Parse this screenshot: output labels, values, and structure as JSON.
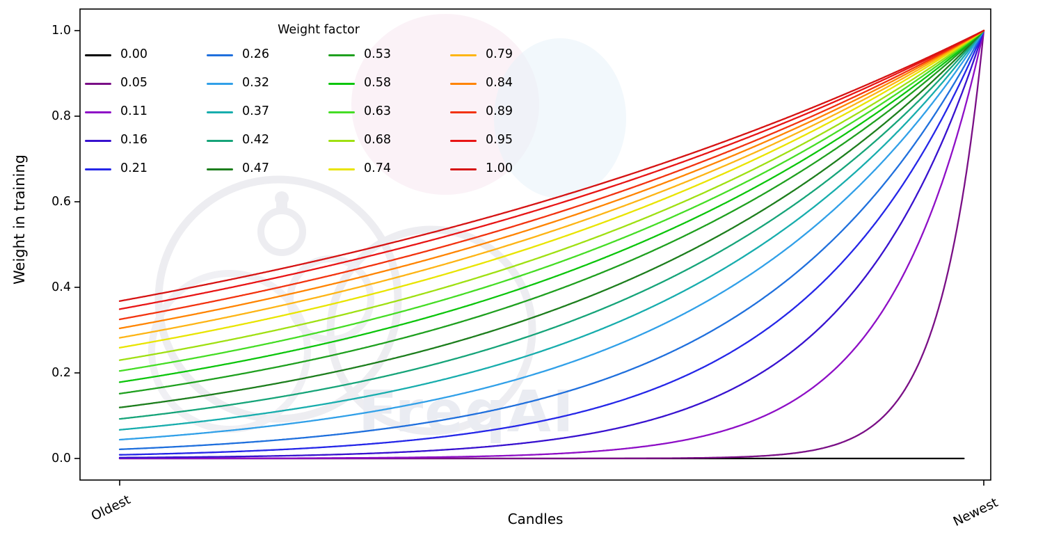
{
  "chart_data": {
    "type": "line",
    "title": "",
    "xlabel": "Candles",
    "ylabel": "Weight in training",
    "x_axis": {
      "tick_labels": [
        "Oldest",
        "Newest"
      ]
    },
    "ylim": [
      0,
      1
    ],
    "yticks": [
      0.0,
      0.2,
      0.4,
      0.6,
      0.8,
      1.0
    ],
    "ytick_labels": [
      "0.0",
      "0.2",
      "0.4",
      "0.6",
      "0.8",
      "1.0"
    ],
    "legend": {
      "title": "Weight factor",
      "position": "upper-left",
      "columns": 4,
      "frame": false
    },
    "grid": false,
    "curve_formula": "weight(x) = exp(-(1 - x) / weight_factor), with x in [0,1] running from oldest to newest candle; weight_factor = 0 keeps the weight at 0 for all but the newest candle (weight 1 at the newest)",
    "watermark": "FreqAI",
    "series": [
      {
        "label": "0.00",
        "weight_factor": 0.0,
        "color": "#000000"
      },
      {
        "label": "0.05",
        "weight_factor": 0.05,
        "color": "#7a0f86"
      },
      {
        "label": "0.11",
        "weight_factor": 0.11,
        "color": "#8e0fc6"
      },
      {
        "label": "0.16",
        "weight_factor": 0.16,
        "color": "#3812cf"
      },
      {
        "label": "0.21",
        "weight_factor": 0.21,
        "color": "#2527e8"
      },
      {
        "label": "0.26",
        "weight_factor": 0.26,
        "color": "#2070dd"
      },
      {
        "label": "0.32",
        "weight_factor": 0.32,
        "color": "#31a0e8"
      },
      {
        "label": "0.37",
        "weight_factor": 0.37,
        "color": "#18adad"
      },
      {
        "label": "0.42",
        "weight_factor": 0.42,
        "color": "#16a479"
      },
      {
        "label": "0.47",
        "weight_factor": 0.47,
        "color": "#1d7e1d"
      },
      {
        "label": "0.53",
        "weight_factor": 0.53,
        "color": "#1fa01f"
      },
      {
        "label": "0.58",
        "weight_factor": 0.58,
        "color": "#0cc50c"
      },
      {
        "label": "0.63",
        "weight_factor": 0.63,
        "color": "#45dd25"
      },
      {
        "label": "0.68",
        "weight_factor": 0.68,
        "color": "#9fe012"
      },
      {
        "label": "0.74",
        "weight_factor": 0.74,
        "color": "#e9e400"
      },
      {
        "label": "0.79",
        "weight_factor": 0.79,
        "color": "#fdb515"
      },
      {
        "label": "0.84",
        "weight_factor": 0.84,
        "color": "#ff8400"
      },
      {
        "label": "0.89",
        "weight_factor": 0.89,
        "color": "#f2330f"
      },
      {
        "label": "0.95",
        "weight_factor": 0.95,
        "color": "#e81515"
      },
      {
        "label": "1.00",
        "weight_factor": 1.0,
        "color": "#d61313"
      }
    ]
  }
}
